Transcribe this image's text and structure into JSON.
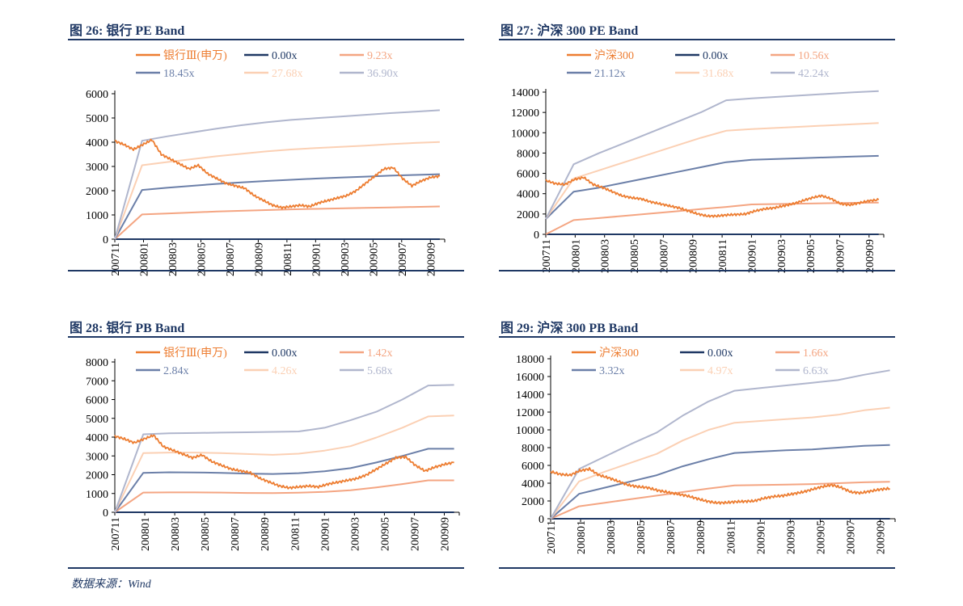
{
  "source": "数据来源：Wind",
  "charts": [
    {
      "title": "图 26:  银行 PE Band",
      "chart_data": {
        "type": "line",
        "title": "银行 PE Band",
        "ylim": [
          0,
          6000
        ],
        "yticks": [
          0,
          1000,
          2000,
          3000,
          4000,
          5000,
          6000
        ],
        "categories": [
          "200711",
          "200801",
          "200803",
          "200805",
          "200807",
          "200809",
          "200811",
          "200901",
          "200903",
          "200905",
          "200907",
          "200909"
        ],
        "legend_rows": [
          [
            "银行Ⅲ(申万)",
            "0.00x",
            "9.23x"
          ],
          [
            "18.45x",
            "27.68x",
            "36.90x"
          ]
        ],
        "price": {
          "name": "银行Ⅲ(申万)",
          "values": [
            4050,
            3900,
            3700,
            3900,
            4100,
            3500,
            3300,
            3100,
            2900,
            3050,
            2700,
            2500,
            2300,
            2200,
            2100,
            1800,
            1600,
            1400,
            1300,
            1350,
            1400,
            1350,
            1500,
            1600,
            1700,
            1800,
            2000,
            2300,
            2600,
            2900,
            2950,
            2500,
            2200,
            2400,
            2550,
            2600
          ]
        },
        "bands": [
          {
            "name": "0.00x",
            "values": [
              0,
              0,
              0,
              0,
              0,
              0,
              0,
              0,
              0,
              0,
              0,
              0,
              0,
              0
            ]
          },
          {
            "name": "9.23x",
            "values": [
              0,
              1020,
              1060,
              1100,
              1140,
              1170,
              1200,
              1230,
              1250,
              1270,
              1290,
              1310,
              1330,
              1350
            ]
          },
          {
            "name": "18.45x",
            "values": [
              0,
              2030,
              2120,
              2200,
              2280,
              2340,
              2400,
              2450,
              2500,
              2540,
              2580,
              2620,
              2650,
              2680
            ]
          },
          {
            "name": "27.68x",
            "values": [
              0,
              3050,
              3180,
              3300,
              3420,
              3520,
              3620,
              3700,
              3760,
              3810,
              3860,
              3920,
              3970,
              4010
            ]
          },
          {
            "name": "36.90x",
            "values": [
              0,
              4060,
              4240,
              4400,
              4560,
              4700,
              4820,
              4920,
              4990,
              5060,
              5130,
              5200,
              5260,
              5320
            ]
          }
        ]
      }
    },
    {
      "title": "图 27:  沪深 300 PE Band",
      "chart_data": {
        "type": "line",
        "title": "沪深 300 PE Band",
        "ylim": [
          0,
          14000
        ],
        "yticks": [
          0,
          2000,
          4000,
          6000,
          8000,
          10000,
          12000,
          14000
        ],
        "categories": [
          "200711",
          "200801",
          "200803",
          "200805",
          "200807",
          "200809",
          "200811",
          "200901",
          "200903",
          "200905",
          "200907",
          "200909"
        ],
        "legend_rows": [
          [
            "沪深300",
            "0.00x",
            "10.56x"
          ],
          [
            "21.12x",
            "31.68x",
            "42.24x"
          ]
        ],
        "price": {
          "name": "沪深300",
          "values": [
            5300,
            5000,
            4900,
            5400,
            5600,
            4900,
            4600,
            4200,
            3800,
            3600,
            3500,
            3200,
            3000,
            2800,
            2600,
            2300,
            2000,
            1800,
            1800,
            1900,
            1950,
            2000,
            2300,
            2500,
            2600,
            2800,
            3000,
            3300,
            3600,
            3800,
            3500,
            3000,
            2900,
            3100,
            3300,
            3400
          ]
        },
        "bands": [
          {
            "name": "0.00x",
            "values": [
              0,
              0,
              0,
              0,
              0,
              0,
              0,
              0,
              0,
              0,
              0,
              0,
              0,
              0
            ]
          },
          {
            "name": "10.56x",
            "values": [
              0,
              1400,
              1600,
              1820,
              2040,
              2260,
              2480,
              2700,
              2940,
              2980,
              3020,
              3060,
              3100,
              3130
            ]
          },
          {
            "name": "21.12x",
            "values": [
              1500,
              4200,
              4600,
              5100,
              5600,
              6100,
              6600,
              7100,
              7340,
              7420,
              7500,
              7580,
              7660,
              7720
            ]
          },
          {
            "name": "31.68x",
            "values": [
              1500,
              5500,
              6300,
              7100,
              7900,
              8700,
              9500,
              10200,
              10360,
              10480,
              10600,
              10720,
              10840,
              10950
            ]
          },
          {
            "name": "42.24x",
            "values": [
              1500,
              6900,
              8000,
              9000,
              10000,
              11000,
              12000,
              13200,
              13380,
              13530,
              13680,
              13830,
              13980,
              14100
            ]
          }
        ]
      }
    },
    {
      "title": "图 28:  银行 PB Band",
      "chart_data": {
        "type": "line",
        "title": "银行 PB Band",
        "ylim": [
          0,
          8000
        ],
        "yticks": [
          0,
          1000,
          2000,
          3000,
          4000,
          5000,
          6000,
          7000,
          8000
        ],
        "categories": [
          "200711",
          "200801",
          "200803",
          "200805",
          "200807",
          "200809",
          "200811",
          "200901",
          "200903",
          "200905",
          "200907",
          "200909"
        ],
        "legend_rows": [
          [
            "银行Ⅲ(申万)",
            "0.00x",
            "1.42x"
          ],
          [
            "2.84x",
            "4.26x",
            "5.68x"
          ]
        ],
        "price": {
          "name": "银行Ⅲ(申万)",
          "values": [
            4050,
            3900,
            3700,
            3900,
            4100,
            3500,
            3300,
            3100,
            2900,
            3050,
            2700,
            2500,
            2300,
            2200,
            2100,
            1800,
            1600,
            1400,
            1300,
            1350,
            1400,
            1350,
            1500,
            1600,
            1700,
            1800,
            2000,
            2300,
            2600,
            2900,
            2950,
            2500,
            2200,
            2400,
            2550,
            2650
          ]
        },
        "bands": [
          {
            "name": "0.00x",
            "values": [
              0,
              0,
              0,
              0,
              0,
              0,
              0,
              0,
              0,
              0,
              0,
              0,
              0,
              0
            ]
          },
          {
            "name": "1.42x",
            "values": [
              0,
              1050,
              1060,
              1060,
              1050,
              1030,
              1020,
              1040,
              1090,
              1170,
              1320,
              1500,
              1700,
              1700
            ]
          },
          {
            "name": "2.84x",
            "values": [
              0,
              2100,
              2130,
              2120,
              2100,
              2060,
              2040,
              2080,
              2180,
              2350,
              2650,
              3000,
              3380,
              3380
            ]
          },
          {
            "name": "4.26x",
            "values": [
              0,
              3150,
              3180,
              3180,
              3150,
              3100,
              3060,
              3120,
              3280,
              3520,
              3980,
              4500,
              5100,
              5150
            ]
          },
          {
            "name": "5.68x",
            "values": [
              0,
              4150,
              4200,
              4220,
              4240,
              4260,
              4280,
              4300,
              4500,
              4900,
              5350,
              6000,
              6750,
              6780
            ]
          }
        ]
      }
    },
    {
      "title": "图 29:  沪深 300 PB Band",
      "chart_data": {
        "type": "line",
        "title": "沪深 300 PB Band",
        "ylim": [
          0,
          18000
        ],
        "yticks": [
          0,
          2000,
          4000,
          6000,
          8000,
          10000,
          12000,
          14000,
          16000,
          18000
        ],
        "categories": [
          "200711",
          "200801",
          "200803",
          "200805",
          "200807",
          "200809",
          "200811",
          "200901",
          "200903",
          "200905",
          "200907",
          "200909"
        ],
        "legend_rows": [
          [
            "沪深300",
            "0.00x",
            "1.66x"
          ],
          [
            "3.32x",
            "4.97x",
            "6.63x"
          ]
        ],
        "price": {
          "name": "沪深300",
          "values": [
            5300,
            5000,
            4900,
            5400,
            5600,
            4900,
            4600,
            4200,
            3800,
            3600,
            3500,
            3200,
            3000,
            2800,
            2600,
            2300,
            2000,
            1800,
            1800,
            1900,
            1950,
            2000,
            2300,
            2500,
            2600,
            2800,
            3000,
            3300,
            3600,
            3800,
            3500,
            3000,
            2900,
            3100,
            3300,
            3400
          ]
        },
        "bands": [
          {
            "name": "0.00x",
            "values": [
              0,
              0,
              0,
              0,
              0,
              0,
              0,
              0,
              0,
              0,
              0,
              0,
              0,
              0
            ]
          },
          {
            "name": "1.66x",
            "values": [
              0,
              1400,
              1800,
              2200,
              2600,
              3000,
              3400,
              3750,
              3800,
              3850,
              3900,
              4000,
              4100,
              4150
            ]
          },
          {
            "name": "3.32x",
            "values": [
              0,
              2800,
              3500,
              4200,
              4900,
              5900,
              6700,
              7400,
              7550,
              7700,
              7800,
              8000,
              8200,
              8300
            ]
          },
          {
            "name": "4.97x",
            "values": [
              0,
              4200,
              5300,
              6300,
              7300,
              8800,
              10000,
              10800,
              11000,
              11200,
              11400,
              11700,
              12200,
              12500
            ]
          },
          {
            "name": "6.63x",
            "values": [
              0,
              5600,
              7000,
              8400,
              9700,
              11600,
              13200,
              14400,
              14700,
              15000,
              15300,
              15600,
              16200,
              16700
            ]
          }
        ]
      }
    }
  ],
  "colors": {
    "price": "#ed7d31",
    "bands": [
      "#1f3864",
      "#f4a582",
      "#6b7fa8",
      "#fbd0b4",
      "#b0b6cd"
    ],
    "title": "#1f3864",
    "axis": "#000000",
    "rule": "#1f3864"
  }
}
